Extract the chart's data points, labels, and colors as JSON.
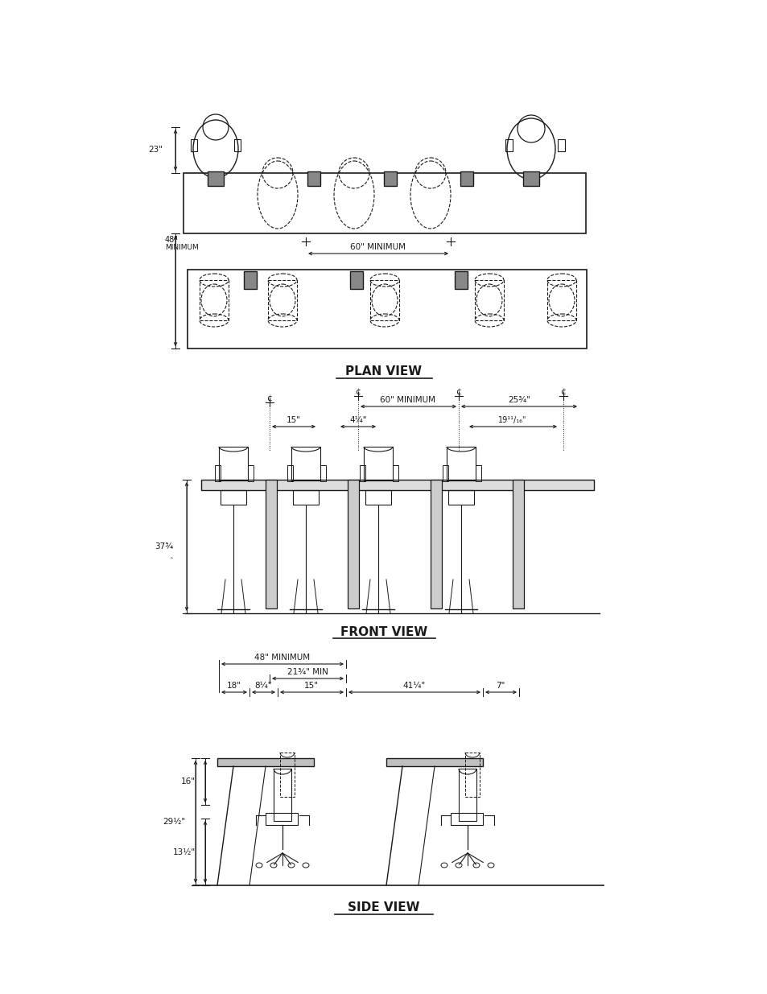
{
  "background_color": "#ffffff",
  "line_color": "#1a1a1a",
  "title_plan": "PLAN VIEW",
  "title_front": "FRONT VIEW",
  "title_side": "SIDE VIEW"
}
